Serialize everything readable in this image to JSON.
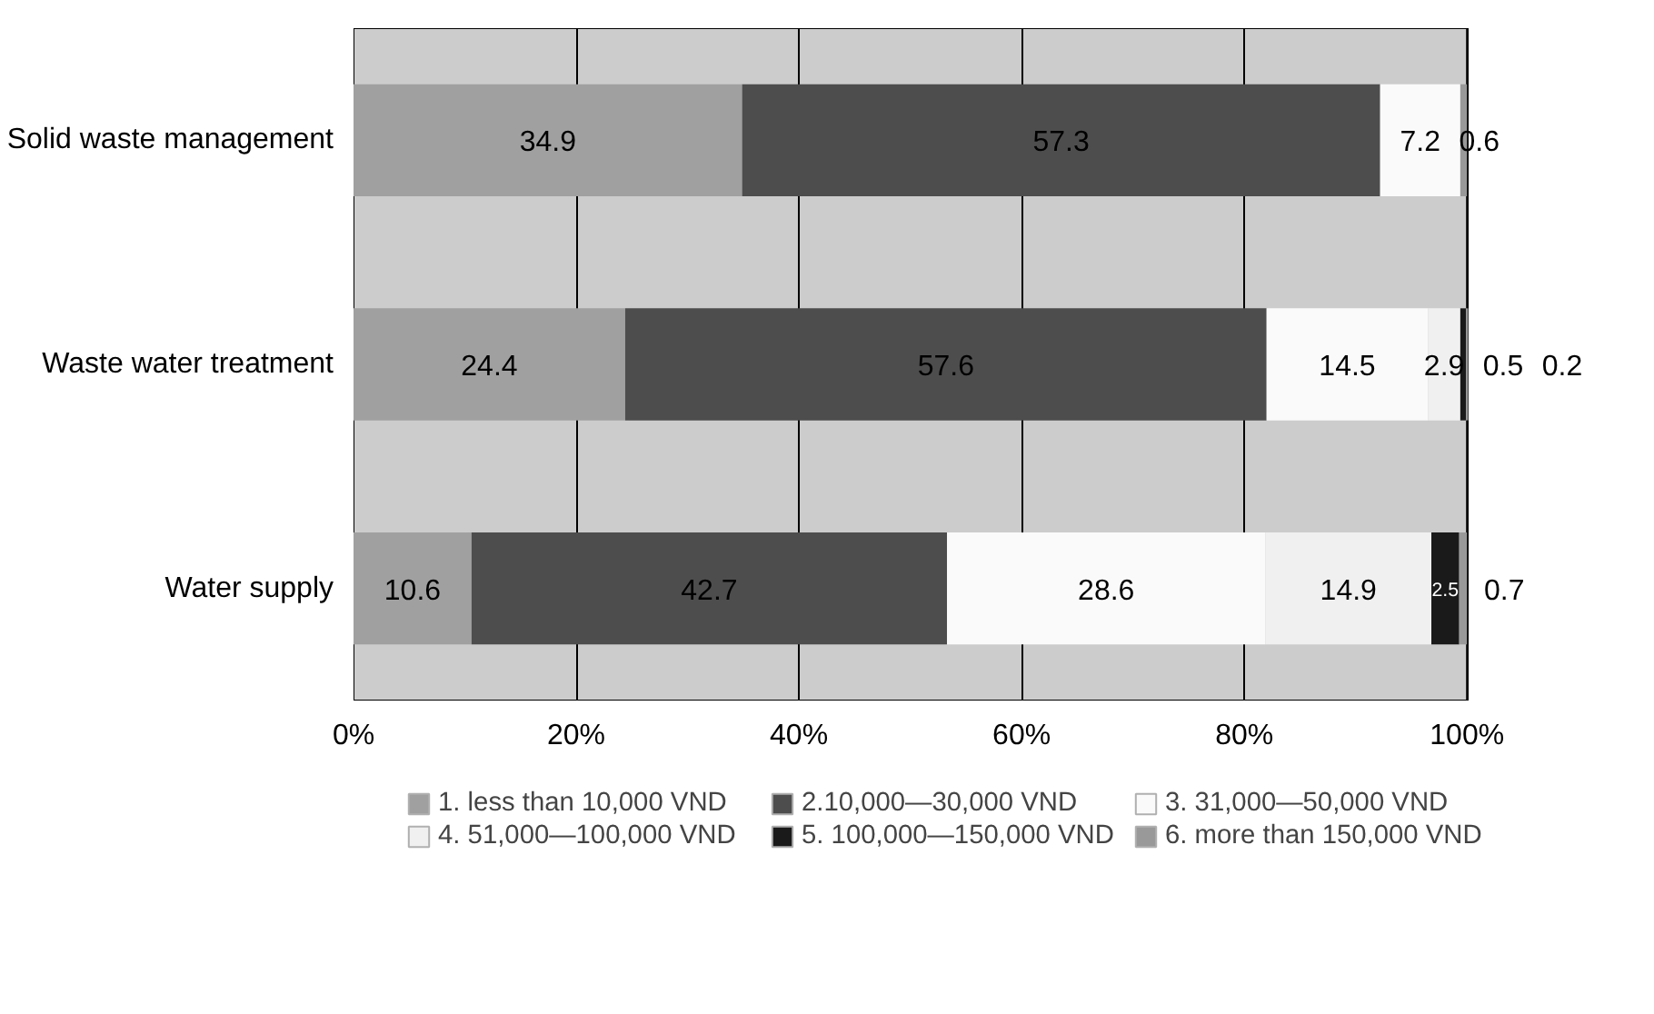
{
  "chart_data": {
    "type": "bar",
    "orientation": "horizontal",
    "stacked": true,
    "categories": [
      "Solid waste management",
      "Waste water treatment",
      "Water supply"
    ],
    "series": [
      {
        "name": "1. less than 10,000 VND",
        "color": "#a0a0a0",
        "values": [
          34.9,
          24.4,
          10.6
        ],
        "value_labels": [
          "34.9",
          "24.4",
          "10.6"
        ]
      },
      {
        "name": "2.10,000—30,000 VND",
        "color": "#4d4d4d",
        "values": [
          57.3,
          57.6,
          42.7
        ],
        "value_labels": [
          "57.3",
          "57.6",
          "42.7"
        ]
      },
      {
        "name": "3. 31,000—50,000 VND",
        "color": "#fafafa",
        "values": [
          7.2,
          14.5,
          28.6
        ],
        "value_labels": [
          "7.2",
          "14.5",
          "28.6"
        ]
      },
      {
        "name": "4. 51,000—100,000 VND",
        "color": "#f0f0f0",
        "values": [
          0,
          2.9,
          14.9
        ],
        "value_labels": [
          null,
          "2.9",
          "14.9"
        ]
      },
      {
        "name": "5. 100,000—150,000 VND",
        "color": "#1a1a1a",
        "values": [
          0,
          0.5,
          2.5
        ],
        "value_labels": [
          null,
          "0.5",
          "2.5"
        ]
      },
      {
        "name": "6. more than 150,000 VND",
        "color": "#999999",
        "values": [
          0.6,
          0.2,
          0.7
        ],
        "value_labels": [
          "0.6",
          "0.2",
          "0.7"
        ]
      }
    ],
    "xlim": [
      0,
      100
    ],
    "xticks": [
      {
        "value": 0,
        "label": "0%"
      },
      {
        "value": 20,
        "label": "20%"
      },
      {
        "value": 40,
        "label": "40%"
      },
      {
        "value": 60,
        "label": "60%"
      },
      {
        "value": 80,
        "label": "80%"
      },
      {
        "value": 100,
        "label": "100%"
      }
    ],
    "grid": "x",
    "legend": "bottom"
  }
}
